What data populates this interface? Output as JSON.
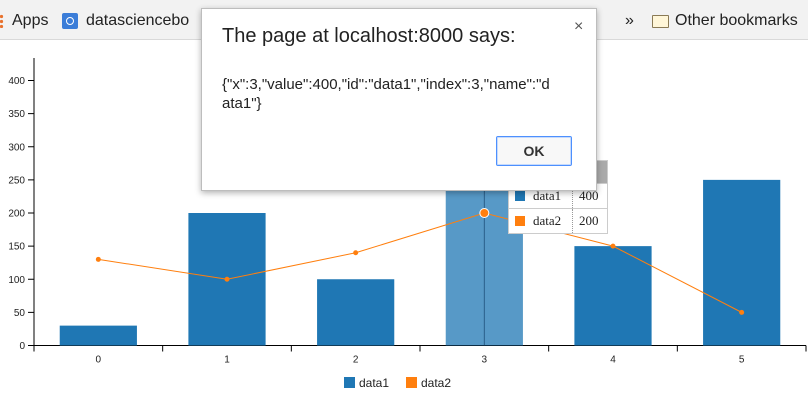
{
  "bookmarks": {
    "apps_label": "Apps",
    "ds_label": "datasciencebo",
    "overflow_chevron": "»",
    "other_label": "Other bookmarks",
    "icons": [
      "apps-grid-icon",
      "datasciencebook-favicon",
      "folder-icon"
    ]
  },
  "dialog": {
    "title": "The page at localhost:8000 says:",
    "message": "{\"x\":3,\"value\":400,\"id\":\"data1\",\"index\":3,\"name\":\"data1\"}",
    "ok_label": "OK",
    "close_label": "×"
  },
  "tooltip": {
    "rows": [
      {
        "name": "data1",
        "value": "400",
        "color": "#1f77b4"
      },
      {
        "name": "data2",
        "value": "200",
        "color": "#ff7f0e"
      }
    ]
  },
  "chart_data": {
    "type": "bar",
    "categories": [
      "0",
      "1",
      "2",
      "3",
      "4",
      "5"
    ],
    "series": [
      {
        "name": "data1",
        "type": "bar",
        "color": "#1f77b4",
        "values": [
          30,
          200,
          100,
          400,
          150,
          250
        ]
      },
      {
        "name": "data2",
        "type": "line",
        "color": "#ff7f0e",
        "values": [
          130,
          100,
          140,
          200,
          150,
          50
        ]
      }
    ],
    "yticks": [
      0,
      50,
      100,
      150,
      200,
      250,
      300,
      350,
      400
    ],
    "ylim": [
      0,
      400
    ],
    "legend_position": "bottom",
    "highlighted_index": 3
  }
}
